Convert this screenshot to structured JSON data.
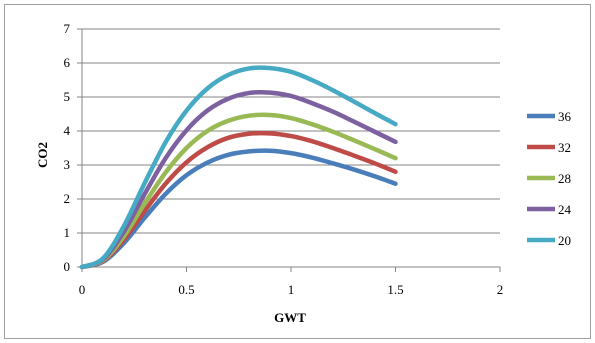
{
  "chart_data": {
    "type": "line",
    "title": "",
    "xlabel": "GWT",
    "ylabel": "CO2",
    "xlim": [
      0,
      2
    ],
    "ylim": [
      0,
      7
    ],
    "x_ticks": [
      0,
      0.5,
      1,
      1.5,
      2
    ],
    "x_tick_labels": [
      "0",
      "0.5",
      "1",
      "1.5",
      "2"
    ],
    "y_ticks": [
      0,
      1,
      2,
      3,
      4,
      5,
      6,
      7
    ],
    "y_tick_labels": [
      "0",
      "1",
      "2",
      "3",
      "4",
      "5",
      "6",
      "7"
    ],
    "grid": "horizontal",
    "legend_position": "right",
    "x": [
      0,
      0.1,
      0.2,
      0.3,
      0.4,
      0.5,
      0.6,
      0.7,
      0.8,
      0.9,
      1.0,
      1.1,
      1.2,
      1.3,
      1.4,
      1.5
    ],
    "series": [
      {
        "name": "36",
        "color": "#4a7ebb",
        "values": [
          0,
          0.15,
          0.7,
          1.45,
          2.15,
          2.7,
          3.07,
          3.3,
          3.4,
          3.42,
          3.35,
          3.22,
          3.05,
          2.87,
          2.67,
          2.45
        ]
      },
      {
        "name": "32",
        "color": "#be4b48",
        "values": [
          0,
          0.17,
          0.8,
          1.65,
          2.45,
          3.08,
          3.52,
          3.8,
          3.92,
          3.93,
          3.85,
          3.7,
          3.5,
          3.28,
          3.05,
          2.8
        ]
      },
      {
        "name": "28",
        "color": "#98b954",
        "values": [
          0,
          0.19,
          0.9,
          1.87,
          2.78,
          3.5,
          4.0,
          4.3,
          4.45,
          4.47,
          4.38,
          4.2,
          3.98,
          3.73,
          3.47,
          3.2
        ]
      },
      {
        "name": "24",
        "color": "#7d60a0",
        "values": [
          0,
          0.22,
          1.04,
          2.15,
          3.2,
          4.02,
          4.6,
          4.95,
          5.12,
          5.13,
          5.03,
          4.82,
          4.57,
          4.28,
          3.98,
          3.68
        ]
      },
      {
        "name": "20",
        "color": "#46aac5",
        "values": [
          0,
          0.25,
          1.2,
          2.47,
          3.67,
          4.6,
          5.25,
          5.65,
          5.84,
          5.85,
          5.74,
          5.5,
          5.2,
          4.87,
          4.53,
          4.2
        ]
      }
    ]
  }
}
